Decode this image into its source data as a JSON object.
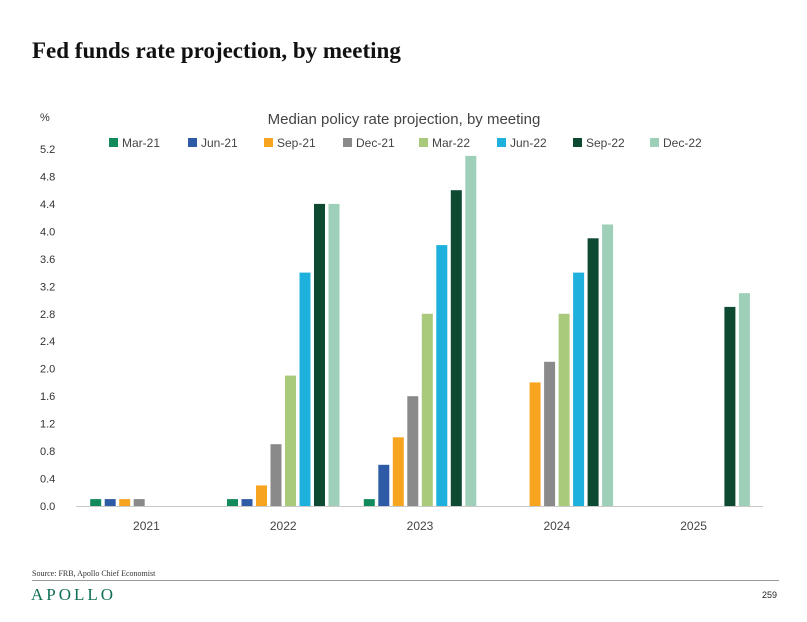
{
  "page": {
    "title": "Fed funds rate projection, by meeting",
    "source": "Source: FRB, Apollo Chief Economist",
    "logo": "APOLLO",
    "page_number": "259"
  },
  "chart_data": {
    "type": "bar",
    "title": "Median policy rate projection, by meeting",
    "ylabel": "%",
    "xlabel": "",
    "categories": [
      "2021",
      "2022",
      "2023",
      "2024",
      "2025"
    ],
    "ylim": [
      0,
      5.2
    ],
    "yticks": [
      "0.0",
      "0.4",
      "0.8",
      "1.2",
      "1.6",
      "2.0",
      "2.4",
      "2.8",
      "3.2",
      "3.6",
      "4.0",
      "4.4",
      "4.8",
      "5.2"
    ],
    "grid": false,
    "legend_position": "top",
    "series": [
      {
        "name": "Mar-21",
        "color": "#138a5b",
        "values": [
          0.1,
          0.1,
          0.1,
          null,
          null
        ]
      },
      {
        "name": "Jun-21",
        "color": "#2f5aa6",
        "values": [
          0.1,
          0.1,
          0.6,
          null,
          null
        ]
      },
      {
        "name": "Sep-21",
        "color": "#f7a520",
        "values": [
          0.1,
          0.3,
          1.0,
          1.8,
          null
        ]
      },
      {
        "name": "Dec-21",
        "color": "#8a8a8a",
        "values": [
          0.1,
          0.9,
          1.6,
          2.1,
          null
        ]
      },
      {
        "name": "Mar-22",
        "color": "#a9c97b",
        "values": [
          null,
          1.9,
          2.8,
          2.8,
          null
        ]
      },
      {
        "name": "Jun-22",
        "color": "#1fb1dd",
        "values": [
          null,
          3.4,
          3.8,
          3.4,
          null
        ]
      },
      {
        "name": "Sep-22",
        "color": "#0e4a31",
        "values": [
          null,
          4.4,
          4.6,
          3.9,
          2.9
        ]
      },
      {
        "name": "Dec-22",
        "color": "#9ecfb8",
        "values": [
          null,
          4.4,
          5.1,
          4.1,
          3.1
        ]
      }
    ]
  }
}
